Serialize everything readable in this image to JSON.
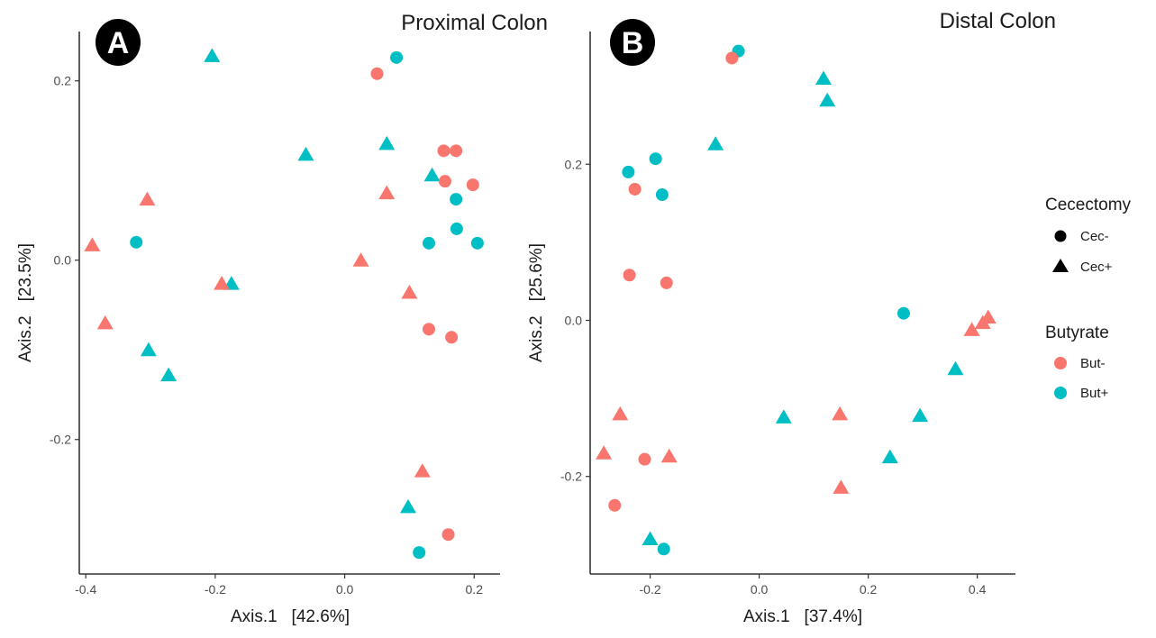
{
  "colors": {
    "but_minus": "#F8766D",
    "but_plus": "#00BFC4",
    "axis": "#333333",
    "badge": "#000000"
  },
  "legend": {
    "cecectomy_title": "Cecectomy",
    "butyrate_title": "Butyrate",
    "items": [
      {
        "group": "shape",
        "label": "Cec-",
        "shape": "circle"
      },
      {
        "group": "shape",
        "label": "Cec+",
        "shape": "triangle"
      },
      {
        "group": "color",
        "label": "But-",
        "color": "#F8766D"
      },
      {
        "group": "color",
        "label": "But+",
        "color": "#00BFC4"
      }
    ]
  },
  "chart_data": [
    {
      "type": "scatter",
      "panel_label": "A",
      "title": "Proximal Colon",
      "xlabel": "Axis.1   [42.6%]",
      "ylabel": "Axis.2   [23.5%]",
      "xlim": [
        -0.41,
        0.24
      ],
      "ylim": [
        -0.35,
        0.255
      ],
      "xticks": [
        -0.4,
        -0.2,
        0.0,
        0.2
      ],
      "xtick_labels": [
        "-0.4",
        "-0.2",
        "0.0",
        "0.2"
      ],
      "yticks": [
        -0.2,
        0.0,
        0.2
      ],
      "ytick_labels": [
        "-0.2",
        "0.0",
        "0.2"
      ],
      "grid": false,
      "points": [
        {
          "x": -0.205,
          "y": 0.228,
          "cec": "Cec+",
          "but": "But+"
        },
        {
          "x": 0.08,
          "y": 0.226,
          "cec": "Cec-",
          "but": "But+"
        },
        {
          "x": 0.05,
          "y": 0.208,
          "cec": "Cec-",
          "but": "But-"
        },
        {
          "x": -0.06,
          "y": 0.118,
          "cec": "Cec+",
          "but": "But+"
        },
        {
          "x": 0.065,
          "y": 0.13,
          "cec": "Cec+",
          "but": "But+"
        },
        {
          "x": 0.153,
          "y": 0.122,
          "cec": "Cec-",
          "but": "But-"
        },
        {
          "x": 0.172,
          "y": 0.122,
          "cec": "Cec-",
          "but": "But-"
        },
        {
          "x": 0.135,
          "y": 0.095,
          "cec": "Cec+",
          "but": "But+"
        },
        {
          "x": 0.155,
          "y": 0.088,
          "cec": "Cec-",
          "but": "But-"
        },
        {
          "x": 0.198,
          "y": 0.084,
          "cec": "Cec-",
          "but": "But-"
        },
        {
          "x": 0.065,
          "y": 0.075,
          "cec": "Cec+",
          "but": "But-"
        },
        {
          "x": 0.172,
          "y": 0.068,
          "cec": "Cec-",
          "but": "But+"
        },
        {
          "x": -0.305,
          "y": 0.068,
          "cec": "Cec+",
          "but": "But-"
        },
        {
          "x": 0.173,
          "y": 0.035,
          "cec": "Cec-",
          "but": "But+"
        },
        {
          "x": -0.322,
          "y": 0.02,
          "cec": "Cec-",
          "but": "But+"
        },
        {
          "x": 0.13,
          "y": 0.019,
          "cec": "Cec-",
          "but": "But+"
        },
        {
          "x": 0.205,
          "y": 0.019,
          "cec": "Cec-",
          "but": "But+"
        },
        {
          "x": -0.39,
          "y": 0.017,
          "cec": "Cec+",
          "but": "But-"
        },
        {
          "x": 0.025,
          "y": 0.0,
          "cec": "Cec+",
          "but": "But-"
        },
        {
          "x": -0.175,
          "y": -0.026,
          "cec": "Cec+",
          "but": "But+"
        },
        {
          "x": -0.19,
          "y": -0.026,
          "cec": "Cec+",
          "but": "But-"
        },
        {
          "x": 0.1,
          "y": -0.036,
          "cec": "Cec+",
          "but": "But-"
        },
        {
          "x": -0.37,
          "y": -0.07,
          "cec": "Cec+",
          "but": "But-"
        },
        {
          "x": 0.13,
          "y": -0.077,
          "cec": "Cec-",
          "but": "But-"
        },
        {
          "x": 0.165,
          "y": -0.086,
          "cec": "Cec-",
          "but": "But-"
        },
        {
          "x": -0.303,
          "y": -0.1,
          "cec": "Cec+",
          "but": "But+"
        },
        {
          "x": -0.272,
          "y": -0.128,
          "cec": "Cec+",
          "but": "But+"
        },
        {
          "x": 0.12,
          "y": -0.235,
          "cec": "Cec+",
          "but": "But-"
        },
        {
          "x": 0.098,
          "y": -0.275,
          "cec": "Cec+",
          "but": "But+"
        },
        {
          "x": 0.16,
          "y": -0.306,
          "cec": "Cec-",
          "but": "But-"
        },
        {
          "x": 0.115,
          "y": -0.326,
          "cec": "Cec-",
          "but": "But+"
        }
      ]
    },
    {
      "type": "scatter",
      "panel_label": "B",
      "title": "Distal Colon",
      "xlabel": "Axis.1   [37.4%]",
      "ylabel": "Axis.2   [25.6%]",
      "xlim": [
        -0.31,
        0.47
      ],
      "ylim": [
        -0.325,
        0.37
      ],
      "xticks": [
        -0.2,
        0.0,
        0.2,
        0.4
      ],
      "xtick_labels": [
        "-0.2",
        "0.0",
        "0.2",
        "0.4"
      ],
      "yticks": [
        -0.2,
        0.0,
        0.2
      ],
      "ytick_labels": [
        "-0.2",
        "0.0",
        "0.2"
      ],
      "grid": false,
      "points": [
        {
          "x": -0.038,
          "y": 0.345,
          "cec": "Cec-",
          "but": "But+"
        },
        {
          "x": -0.05,
          "y": 0.336,
          "cec": "Cec-",
          "but": "But-"
        },
        {
          "x": 0.118,
          "y": 0.31,
          "cec": "Cec+",
          "but": "But+"
        },
        {
          "x": 0.125,
          "y": 0.282,
          "cec": "Cec+",
          "but": "But+"
        },
        {
          "x": -0.08,
          "y": 0.226,
          "cec": "Cec+",
          "but": "But+"
        },
        {
          "x": -0.19,
          "y": 0.207,
          "cec": "Cec-",
          "but": "But+"
        },
        {
          "x": -0.24,
          "y": 0.19,
          "cec": "Cec-",
          "but": "But+"
        },
        {
          "x": -0.228,
          "y": 0.168,
          "cec": "Cec-",
          "but": "But-"
        },
        {
          "x": -0.178,
          "y": 0.161,
          "cec": "Cec-",
          "but": "But+"
        },
        {
          "x": -0.238,
          "y": 0.058,
          "cec": "Cec-",
          "but": "But-"
        },
        {
          "x": -0.17,
          "y": 0.048,
          "cec": "Cec-",
          "but": "But-"
        },
        {
          "x": 0.265,
          "y": 0.009,
          "cec": "Cec-",
          "but": "But+"
        },
        {
          "x": 0.42,
          "y": 0.004,
          "cec": "Cec+",
          "but": "But-"
        },
        {
          "x": 0.41,
          "y": -0.003,
          "cec": "Cec+",
          "but": "But-"
        },
        {
          "x": 0.39,
          "y": -0.012,
          "cec": "Cec+",
          "but": "But-"
        },
        {
          "x": 0.36,
          "y": -0.062,
          "cec": "Cec+",
          "but": "But+"
        },
        {
          "x": -0.255,
          "y": -0.12,
          "cec": "Cec+",
          "but": "But-"
        },
        {
          "x": 0.045,
          "y": -0.124,
          "cec": "Cec+",
          "but": "But+"
        },
        {
          "x": 0.148,
          "y": -0.12,
          "cec": "Cec+",
          "but": "But-"
        },
        {
          "x": 0.295,
          "y": -0.122,
          "cec": "Cec+",
          "but": "But+"
        },
        {
          "x": -0.285,
          "y": -0.17,
          "cec": "Cec+",
          "but": "But-"
        },
        {
          "x": -0.165,
          "y": -0.174,
          "cec": "Cec+",
          "but": "But-"
        },
        {
          "x": 0.24,
          "y": -0.175,
          "cec": "Cec+",
          "but": "But+"
        },
        {
          "x": -0.21,
          "y": -0.178,
          "cec": "Cec-",
          "but": "But-"
        },
        {
          "x": 0.15,
          "y": -0.214,
          "cec": "Cec+",
          "but": "But-"
        },
        {
          "x": -0.265,
          "y": -0.237,
          "cec": "Cec-",
          "but": "But-"
        },
        {
          "x": -0.2,
          "y": -0.28,
          "cec": "Cec+",
          "but": "But+"
        },
        {
          "x": -0.175,
          "y": -0.293,
          "cec": "Cec-",
          "but": "But+"
        }
      ]
    }
  ]
}
